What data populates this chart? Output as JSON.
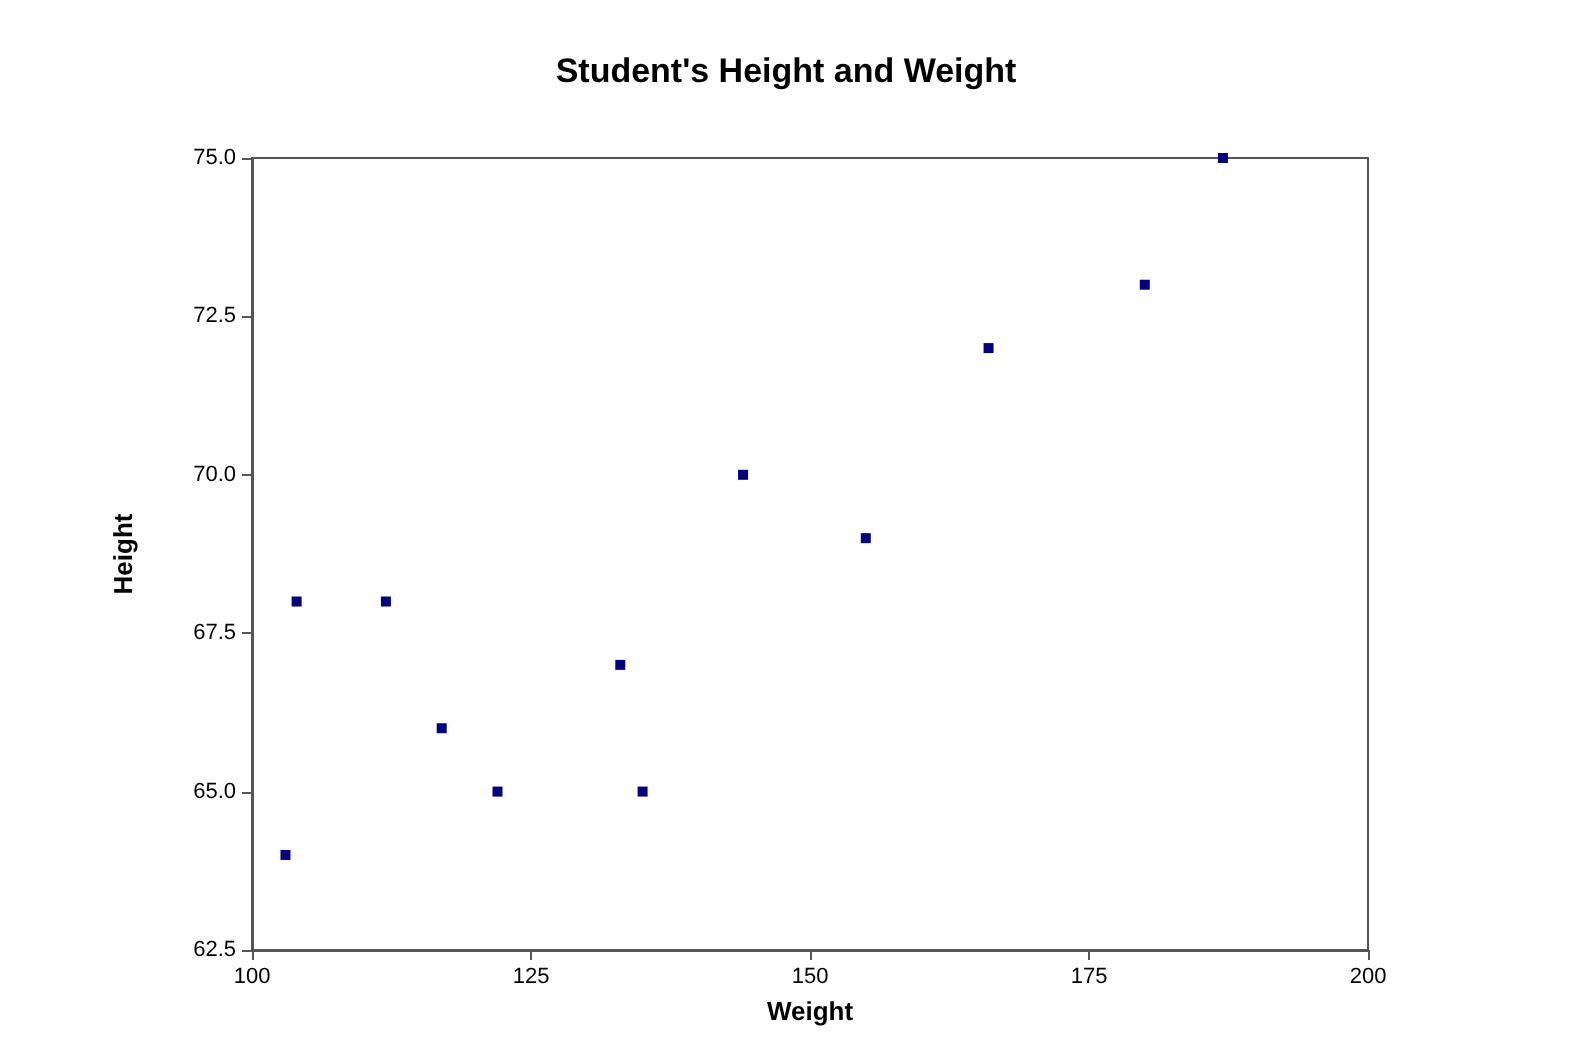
{
  "chart_data": {
    "type": "scatter",
    "title": "Student's Height and Weight",
    "xlabel": "Weight",
    "ylabel": "Height",
    "x": [
      103,
      104,
      112,
      117,
      122,
      133,
      135,
      144,
      155,
      166,
      180,
      187
    ],
    "values": [
      64,
      68,
      68,
      66,
      65,
      67,
      65,
      70,
      69,
      72,
      73,
      75
    ],
    "color": "#000080",
    "marker": "square",
    "grid": false,
    "xlim": [
      100,
      200
    ],
    "xticks": [
      100,
      125,
      150,
      175,
      200
    ],
    "ylim": [
      62.5,
      75
    ],
    "yticks": [
      {
        "value": 62.5,
        "label": "62.5"
      },
      {
        "value": 65,
        "label": "65.0"
      },
      {
        "value": 67.5,
        "label": "67.5"
      },
      {
        "value": 70,
        "label": "70.0"
      },
      {
        "value": 72.5,
        "label": "72.5"
      },
      {
        "value": 75,
        "label": "75.0"
      }
    ]
  }
}
